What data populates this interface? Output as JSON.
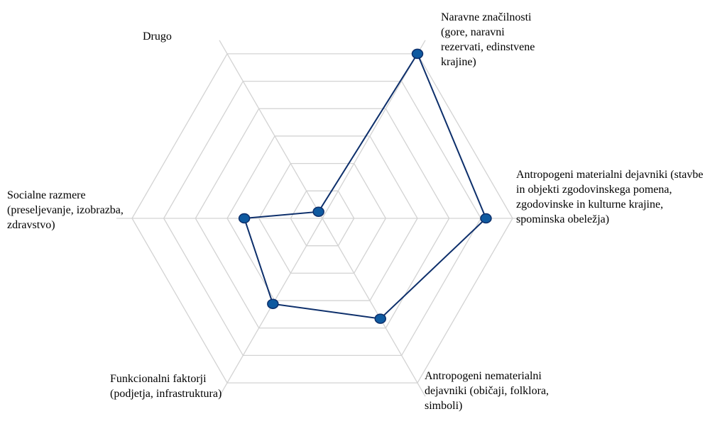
{
  "chart_data": {
    "type": "radar",
    "title": "",
    "axes": [
      "Naravne značilnosti\n(gore, naravni\nrezervati, edinstvene\nkrajine)",
      "Antropogeni materialni dejavniki (stavbe\nin objekti zgodovinskega pomena,\nzgodovinske in kulturne krajine,\nspominska obeležja)",
      "Antropogeni nematerialni\ndejavniki (običaji, folklora,\nsimboli)",
      "Funkcionalni faktorji\n(podjetja, infrastruktura)",
      "Socialne razmere\n(preseljevanje, izobrazba,\nzdravstvo)",
      "Drugo"
    ],
    "series": [
      {
        "values": [
          100,
          86,
          61,
          52,
          41,
          4
        ]
      }
    ],
    "rmax": 100,
    "rings": 6,
    "grid": true,
    "line_color": "#0d2f6b",
    "marker_color": "#0f5aa0",
    "grid_color": "#d3d3d3"
  }
}
